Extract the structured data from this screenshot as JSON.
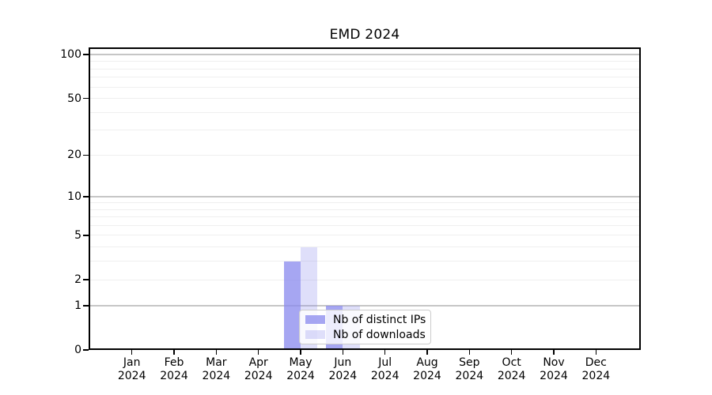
{
  "chart_data": {
    "type": "bar",
    "title": "EMD 2024",
    "categories": [
      "Jan",
      "Feb",
      "Mar",
      "Apr",
      "May",
      "Jun",
      "Jul",
      "Aug",
      "Sep",
      "Oct",
      "Nov",
      "Dec"
    ],
    "category_year": "2024",
    "series": [
      {
        "name": "Nb of distinct IPs",
        "values": [
          0,
          0,
          0,
          0,
          3,
          1,
          0,
          0,
          0,
          0,
          0,
          0
        ],
        "color": "rgba(136,136,238,0.75)"
      },
      {
        "name": "Nb of downloads",
        "values": [
          0,
          0,
          0,
          0,
          4,
          1,
          0,
          0,
          0,
          0,
          0,
          0
        ],
        "color": "rgba(136,136,238,0.27)"
      }
    ],
    "xlabel": "",
    "ylabel": "",
    "yscale": "log1p",
    "ylim": [
      0,
      113
    ],
    "yticks": [
      0,
      1,
      2,
      5,
      10,
      20,
      50,
      100
    ],
    "major_gridlines": [
      1,
      10,
      100
    ],
    "minor_gridlines": [
      2,
      3,
      4,
      5,
      6,
      7,
      8,
      9,
      20,
      30,
      40,
      50,
      60,
      70,
      80,
      90
    ],
    "grid": "horizontal-only",
    "legend_position": "bottom-center",
    "colors": {
      "bar_base": "#8888ee",
      "major_grid": "#c6c6c6",
      "minor_grid": "#efefef",
      "axis": "#000000",
      "legend_border": "#cccccc"
    }
  }
}
